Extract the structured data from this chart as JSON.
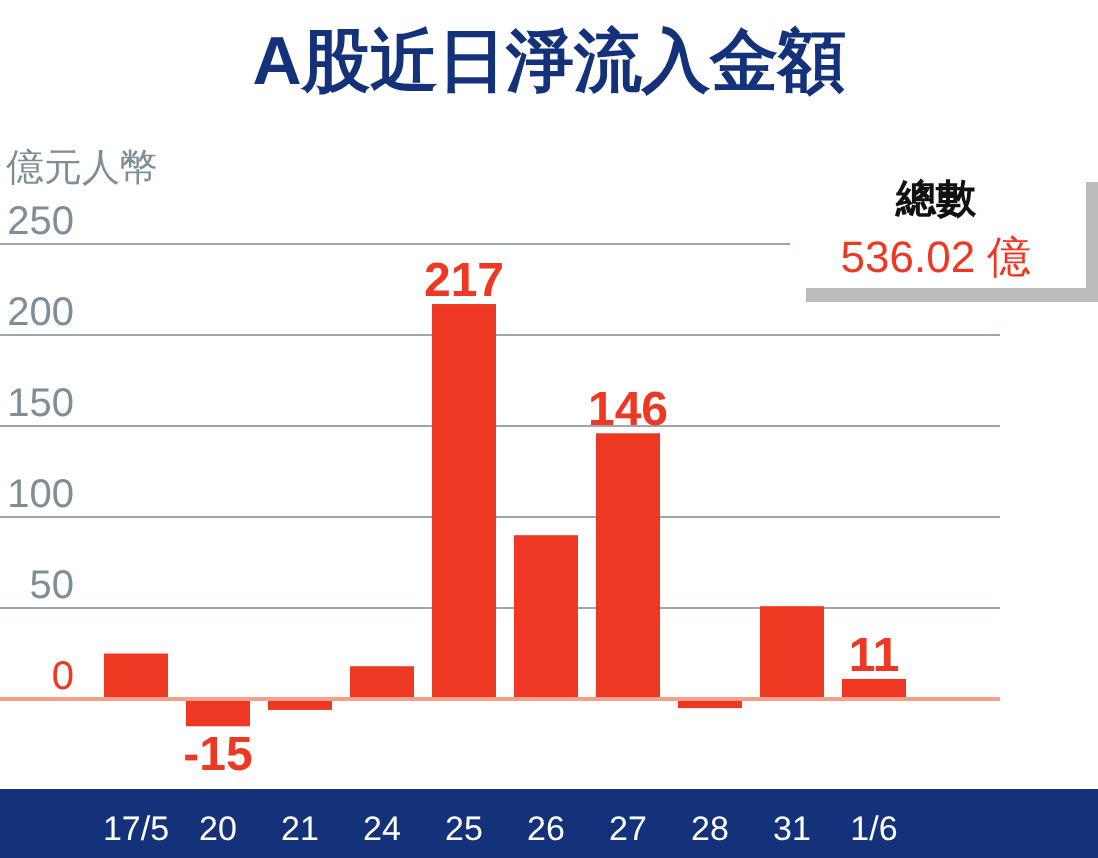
{
  "chart_data": {
    "type": "bar",
    "title": "A股近日淨流入金額",
    "ylabel": "億元人幣",
    "categories": [
      "17/5",
      "20",
      "21",
      "24",
      "25",
      "26",
      "27",
      "28",
      "31",
      "1/6"
    ],
    "values": [
      25,
      -15,
      -6,
      18,
      217,
      90,
      146,
      -5,
      51,
      11
    ],
    "value_labels": [
      null,
      "-15",
      null,
      null,
      "217",
      null,
      "146",
      null,
      null,
      "11"
    ],
    "color": "#ee3823",
    "ylim": [
      -50,
      250
    ],
    "ref_lines": [
      {
        "axis": "y",
        "value": 0,
        "color": "#f4a08a"
      }
    ],
    "yticks": [
      0,
      50,
      100,
      150,
      200,
      250
    ],
    "grid": "y",
    "annotations": [
      "總數",
      "536.02 億"
    ]
  }
}
